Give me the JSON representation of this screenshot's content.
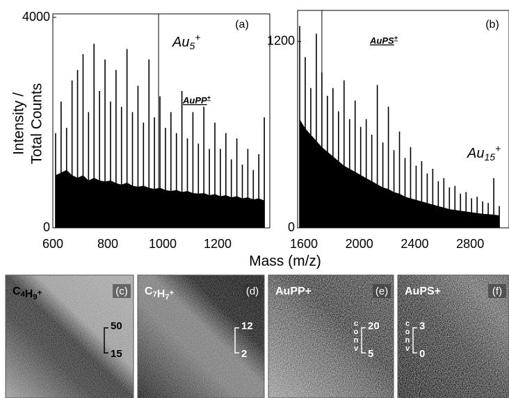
{
  "chart_data": [
    {
      "type": "spectrum",
      "panel": "(a)",
      "ylabel": [
        "Intensity /",
        "Total Counts"
      ],
      "xlabel": "Mass (m/z)",
      "xlim": [
        600,
        1390
      ],
      "xticks": [
        600,
        800,
        1000,
        1200
      ],
      "ylim": [
        0,
        4000
      ],
      "yticks": [
        0,
        4000
      ],
      "reference_x": [
        985
      ],
      "annotations": [
        {
          "t": "Au",
          "sub": "5",
          "sup": "+"
        },
        {
          "t": "AuPP",
          "sup": "+"
        }
      ],
      "x": [
        610,
        630,
        650,
        670,
        690,
        710,
        730,
        750,
        770,
        790,
        810,
        830,
        850,
        870,
        890,
        910,
        930,
        950,
        970,
        990,
        1010,
        1030,
        1050,
        1070,
        1090,
        1110,
        1130,
        1150,
        1170,
        1190,
        1210,
        1230,
        1250,
        1270,
        1290,
        1310,
        1330,
        1350,
        1370
      ],
      "series": [
        {
          "color": "#000000",
          "values": [
            1800,
            2400,
            1900,
            2800,
            3000,
            3300,
            2200,
            3500,
            2600,
            3200,
            2400,
            3000,
            2300,
            3400,
            2200,
            2700,
            2000,
            3200,
            2100,
            2500,
            1900,
            2200,
            1800,
            2600,
            1700,
            2200,
            1600,
            2300,
            1500,
            2000,
            1500,
            1800,
            1300,
            1700,
            1200,
            1500,
            1100,
            1400,
            2100
          ]
        },
        {
          "color": "#000000",
          "values": [
            1000,
            1050,
            1100,
            1000,
            950,
            1000,
            900,
            950,
            900,
            880,
            900,
            850,
            820,
            860,
            800,
            780,
            800,
            760,
            740,
            760,
            720,
            700,
            720,
            680,
            700,
            660,
            650,
            660,
            620,
            640,
            600,
            620,
            580,
            600,
            560,
            580,
            540,
            560,
            520
          ]
        }
      ]
    },
    {
      "type": "spectrum",
      "panel": "(b)",
      "xlim": [
        1555,
        3080
      ],
      "xticks": [
        1600,
        2000,
        2400,
        2800
      ],
      "ylim": [
        0,
        1400
      ],
      "yticks": [
        0,
        1200
      ],
      "reference_x": [
        1730
      ],
      "annotations": [
        {
          "t": "AuPS",
          "sup": "+"
        },
        {
          "t": "Au",
          "sub": "15",
          "sup": "+"
        }
      ],
      "x": [
        1570,
        1610,
        1650,
        1690,
        1730,
        1770,
        1810,
        1850,
        1890,
        1930,
        1970,
        2010,
        2050,
        2090,
        2130,
        2170,
        2210,
        2250,
        2290,
        2330,
        2370,
        2410,
        2450,
        2490,
        2530,
        2570,
        2610,
        2650,
        2690,
        2730,
        2770,
        2810,
        2850,
        2890,
        2930,
        2970,
        3010
      ],
      "series": [
        {
          "color": "#000000",
          "values": [
            1300,
            1100,
            900,
            1250,
            1000,
            850,
            900,
            750,
            950,
            700,
            820,
            650,
            700,
            600,
            920,
            550,
            780,
            500,
            620,
            450,
            520,
            400,
            430,
            350,
            380,
            300,
            320,
            260,
            270,
            220,
            230,
            190,
            200,
            170,
            160,
            320,
            140
          ]
        },
        {
          "color": "#000000",
          "values": [
            700,
            640,
            600,
            560,
            520,
            490,
            460,
            430,
            400,
            380,
            360,
            340,
            320,
            300,
            280,
            260,
            250,
            230,
            220,
            200,
            190,
            180,
            170,
            160,
            150,
            140,
            130,
            120,
            115,
            110,
            105,
            100,
            95,
            90,
            88,
            85,
            80
          ]
        }
      ]
    }
  ],
  "images": [
    {
      "label": [
        {
          "t": "C"
        },
        {
          "sub": "4"
        },
        {
          "t": "H"
        },
        {
          "sub": "9"
        },
        {
          "sup": "+"
        }
      ],
      "panel": "(c)",
      "scale": [
        "50",
        "15"
      ]
    },
    {
      "label": [
        {
          "t": "C"
        },
        {
          "sub": "7"
        },
        {
          "t": "H"
        },
        {
          "sub": "7"
        },
        {
          "sup": "+"
        }
      ],
      "panel": "(d)",
      "scale": [
        "12",
        "2"
      ]
    },
    {
      "label": [
        {
          "t": "AuPP+"
        }
      ],
      "panel": "(e)",
      "scale": [
        "20",
        "5"
      ],
      "unit": [
        "c",
        "o",
        "n",
        "v"
      ]
    },
    {
      "label": [
        {
          "t": "AuPS+"
        }
      ],
      "panel": "(f)",
      "scale": [
        "3",
        "0"
      ],
      "unit": [
        "c",
        "o",
        "n",
        "v"
      ]
    }
  ]
}
